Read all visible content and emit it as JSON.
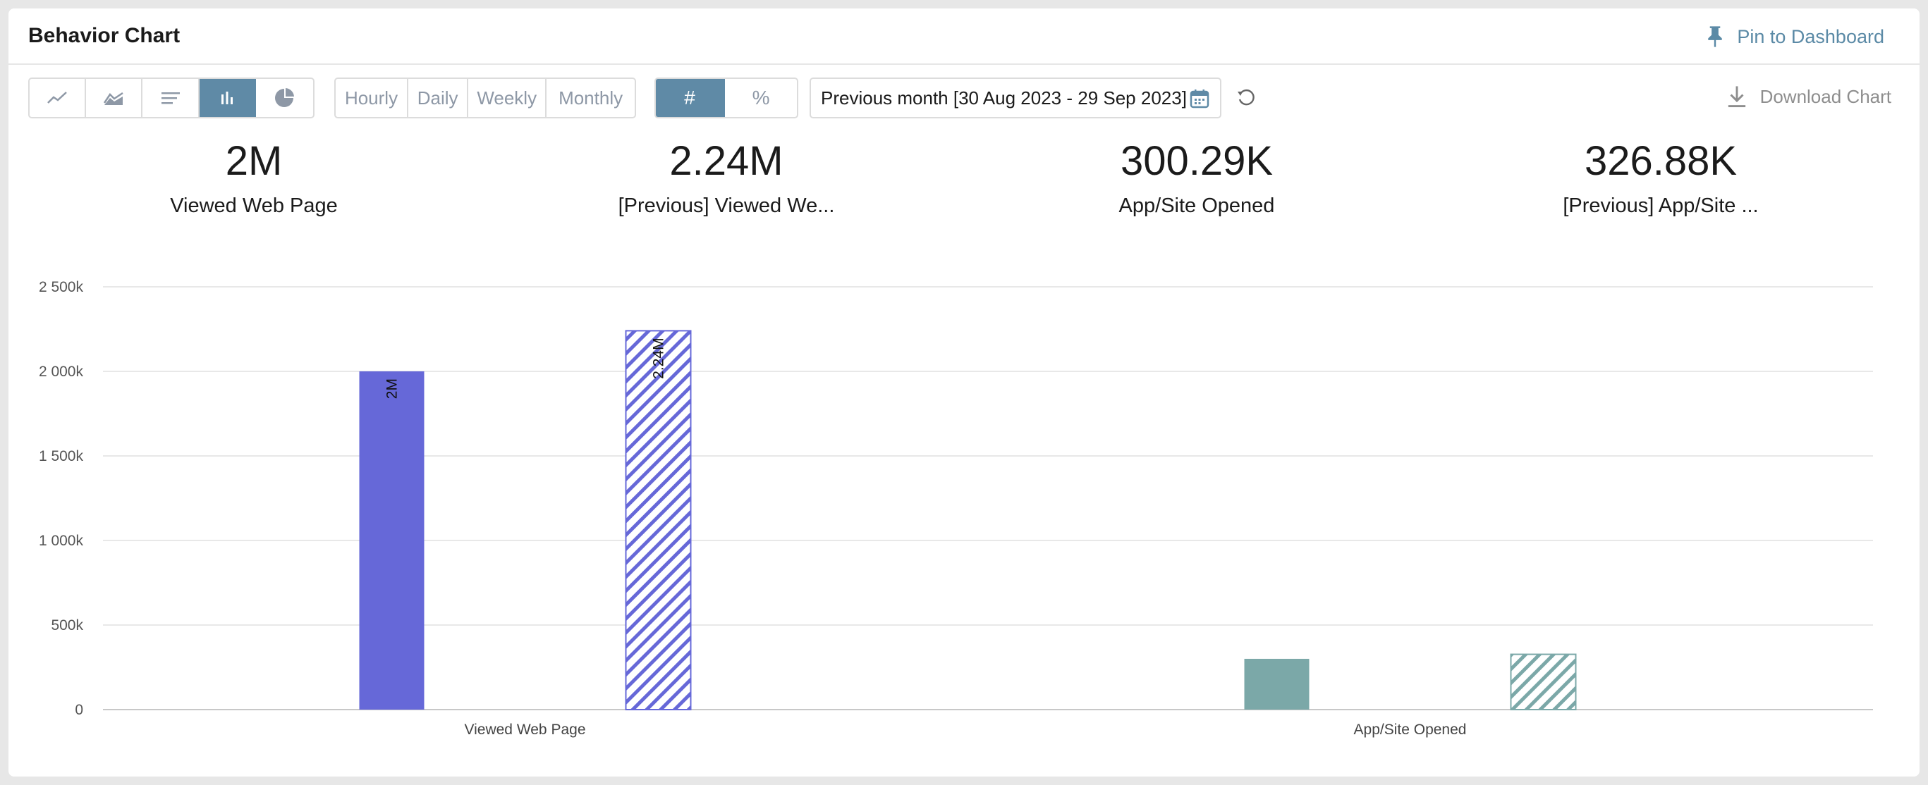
{
  "header": {
    "title": "Behavior Chart",
    "pin_label": "Pin to Dashboard"
  },
  "toolbar": {
    "chart_types": [
      {
        "name": "line-chart-icon",
        "active": false
      },
      {
        "name": "area-chart-icon",
        "active": false
      },
      {
        "name": "horizontal-bar-icon",
        "active": false
      },
      {
        "name": "bar-chart-icon",
        "active": true
      },
      {
        "name": "pie-chart-icon",
        "active": false
      }
    ],
    "granularity": [
      "Hourly",
      "Daily",
      "Weekly",
      "Monthly"
    ],
    "mode": [
      {
        "label": "#",
        "active": true
      },
      {
        "label": "%",
        "active": false
      }
    ],
    "date_range": "Previous month [30 Aug 2023 - 29 Sep 2023]",
    "download_label": "Download Chart"
  },
  "metrics": [
    {
      "value": "2M",
      "label": "Viewed Web Page"
    },
    {
      "value": "2.24M",
      "label": "[Previous] Viewed We..."
    },
    {
      "value": "300.29K",
      "label": "App/Site Opened"
    },
    {
      "value": "326.88K",
      "label": "[Previous] App/Site ..."
    }
  ],
  "colors": {
    "accent": "#5f8aa6",
    "series_a": "#6668d8",
    "series_b": "#7ba8a8"
  },
  "chart_data": {
    "type": "bar",
    "categories": [
      "Viewed Web Page",
      "App/Site Opened"
    ],
    "series": [
      {
        "values": [
          2000000,
          300290
        ]
      },
      {
        "values": [
          2240000,
          326880
        ],
        "pattern": "hatched"
      }
    ],
    "data_labels": [
      [
        "2M",
        ""
      ],
      [
        "2.24M",
        ""
      ]
    ],
    "y_ticks": [
      {
        "value": 0,
        "label": "0"
      },
      {
        "value": 500000,
        "label": "500k"
      },
      {
        "value": 1000000,
        "label": "1 000k"
      },
      {
        "value": 1500000,
        "label": "1 500k"
      },
      {
        "value": 2000000,
        "label": "2 000k"
      },
      {
        "value": 2500000,
        "label": "2 500k"
      }
    ],
    "ylim": [
      0,
      2500000
    ],
    "grid": true
  }
}
